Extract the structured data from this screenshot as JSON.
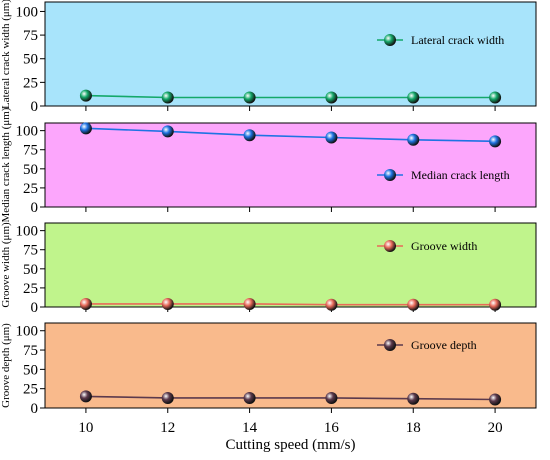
{
  "chart_data": {
    "type": "line",
    "layout": "stacked-panels",
    "xlabel": "Cutting speed (mm/s)",
    "x": [
      10,
      12,
      14,
      16,
      18,
      20
    ],
    "xlim": [
      9,
      21
    ],
    "panels": [
      {
        "ylabel": "Lateral crack width (μm)",
        "ylim": [
          0,
          110
        ],
        "yticks": [
          0,
          25,
          50,
          75,
          100
        ],
        "background": "#a8e4fb",
        "legend_placement": "top-right",
        "series": [
          {
            "name": "Lateral crack width",
            "color": "#14a86a",
            "values": [
              11,
              9,
              9,
              9,
              9,
              9
            ]
          }
        ]
      },
      {
        "ylabel": "Median crack length (μm)",
        "ylim": [
          0,
          110
        ],
        "yticks": [
          0,
          25,
          50,
          75,
          100
        ],
        "background": "#fca6fc",
        "legend_placement": "middle-right",
        "series": [
          {
            "name": "Median crack length",
            "color": "#1e73e3",
            "values": [
              103,
              99,
              94,
              91,
              88,
              86
            ]
          }
        ]
      },
      {
        "ylabel": "Groove width (μm)",
        "ylim": [
          0,
          110
        ],
        "yticks": [
          0,
          25,
          50,
          75,
          100
        ],
        "background": "#c0f48c",
        "legend_placement": "middle-right",
        "series": [
          {
            "name": "Groove width",
            "color": "#e86a5a",
            "values": [
              4,
              4,
              4,
              3,
              3,
              3
            ]
          }
        ]
      },
      {
        "ylabel": "Groove depth (μm)",
        "ylim": [
          0,
          110
        ],
        "yticks": [
          0,
          25,
          50,
          75,
          100
        ],
        "background": "#f9ba8c",
        "legend_placement": "top-right",
        "series": [
          {
            "name": "Groove depth",
            "color": "#5c3a4c",
            "values": [
              15,
              13,
              13,
              13,
              12,
              11
            ]
          }
        ]
      }
    ]
  }
}
